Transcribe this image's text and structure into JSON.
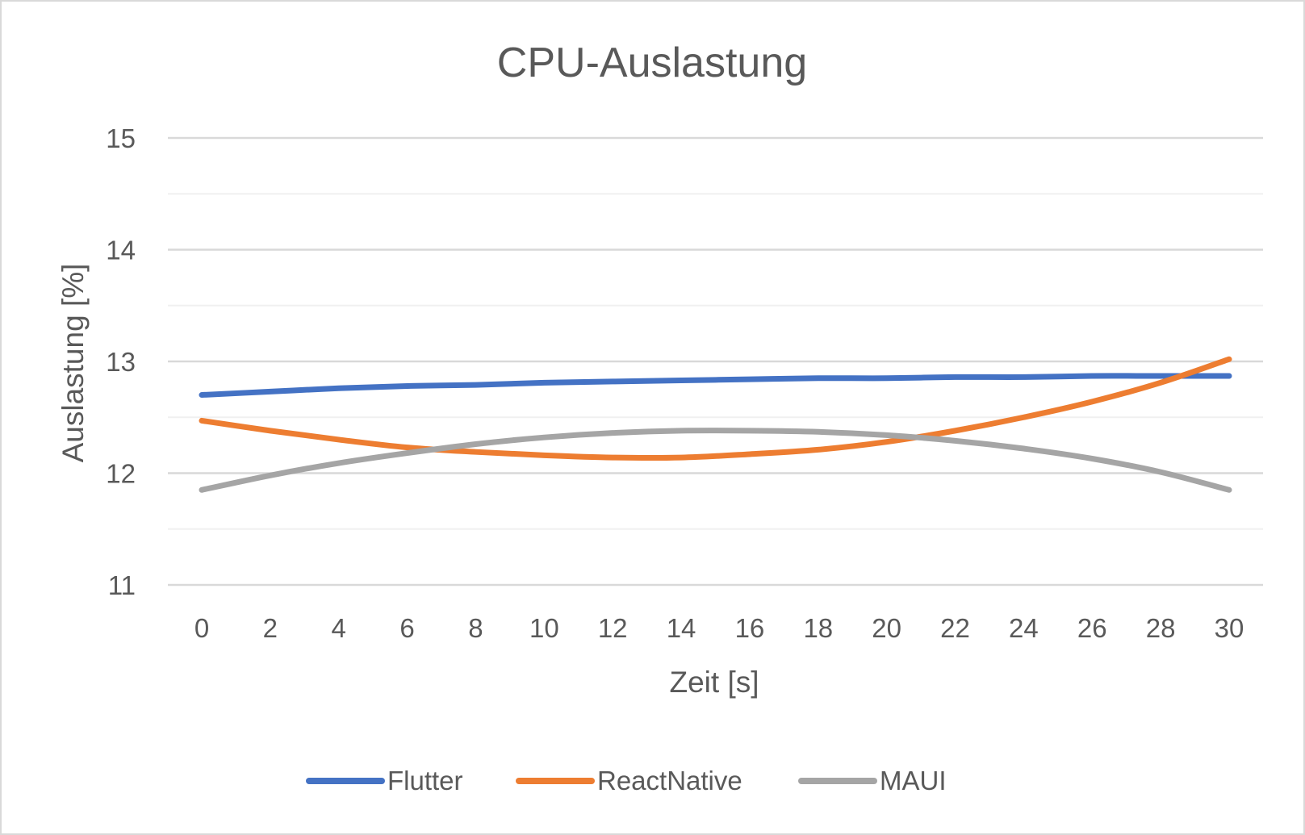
{
  "chart_data": {
    "type": "line",
    "title": "CPU-Auslastung",
    "xlabel": "Zeit [s]",
    "ylabel": "Auslastung [%]",
    "xlim": [
      0,
      30
    ],
    "ylim": [
      11,
      15
    ],
    "x_ticks": [
      "0",
      "2",
      "4",
      "6",
      "8",
      "10",
      "12",
      "14",
      "16",
      "18",
      "20",
      "22",
      "24",
      "26",
      "28",
      "30"
    ],
    "y_ticks": [
      "11",
      "12",
      "13",
      "14",
      "15"
    ],
    "grid": true,
    "minor_grid": true,
    "legend": "bottom",
    "x": [
      0,
      2,
      4,
      6,
      8,
      10,
      12,
      14,
      16,
      18,
      20,
      22,
      24,
      26,
      28,
      30
    ],
    "series": [
      {
        "name": "Flutter",
        "color": "#4472c4",
        "values": [
          12.7,
          12.73,
          12.76,
          12.78,
          12.79,
          12.81,
          12.82,
          12.83,
          12.84,
          12.85,
          12.85,
          12.86,
          12.86,
          12.87,
          12.87,
          12.87
        ]
      },
      {
        "name": "ReactNative",
        "color": "#ed7d31",
        "values": [
          12.47,
          12.38,
          12.3,
          12.23,
          12.19,
          12.16,
          12.14,
          12.14,
          12.17,
          12.21,
          12.28,
          12.38,
          12.5,
          12.64,
          12.81,
          13.02
        ]
      },
      {
        "name": "MAUI",
        "color": "#a5a5a5",
        "values": [
          11.85,
          11.98,
          12.09,
          12.18,
          12.26,
          12.32,
          12.36,
          12.38,
          12.38,
          12.37,
          12.34,
          12.29,
          12.22,
          12.13,
          12.01,
          11.85
        ]
      }
    ]
  }
}
